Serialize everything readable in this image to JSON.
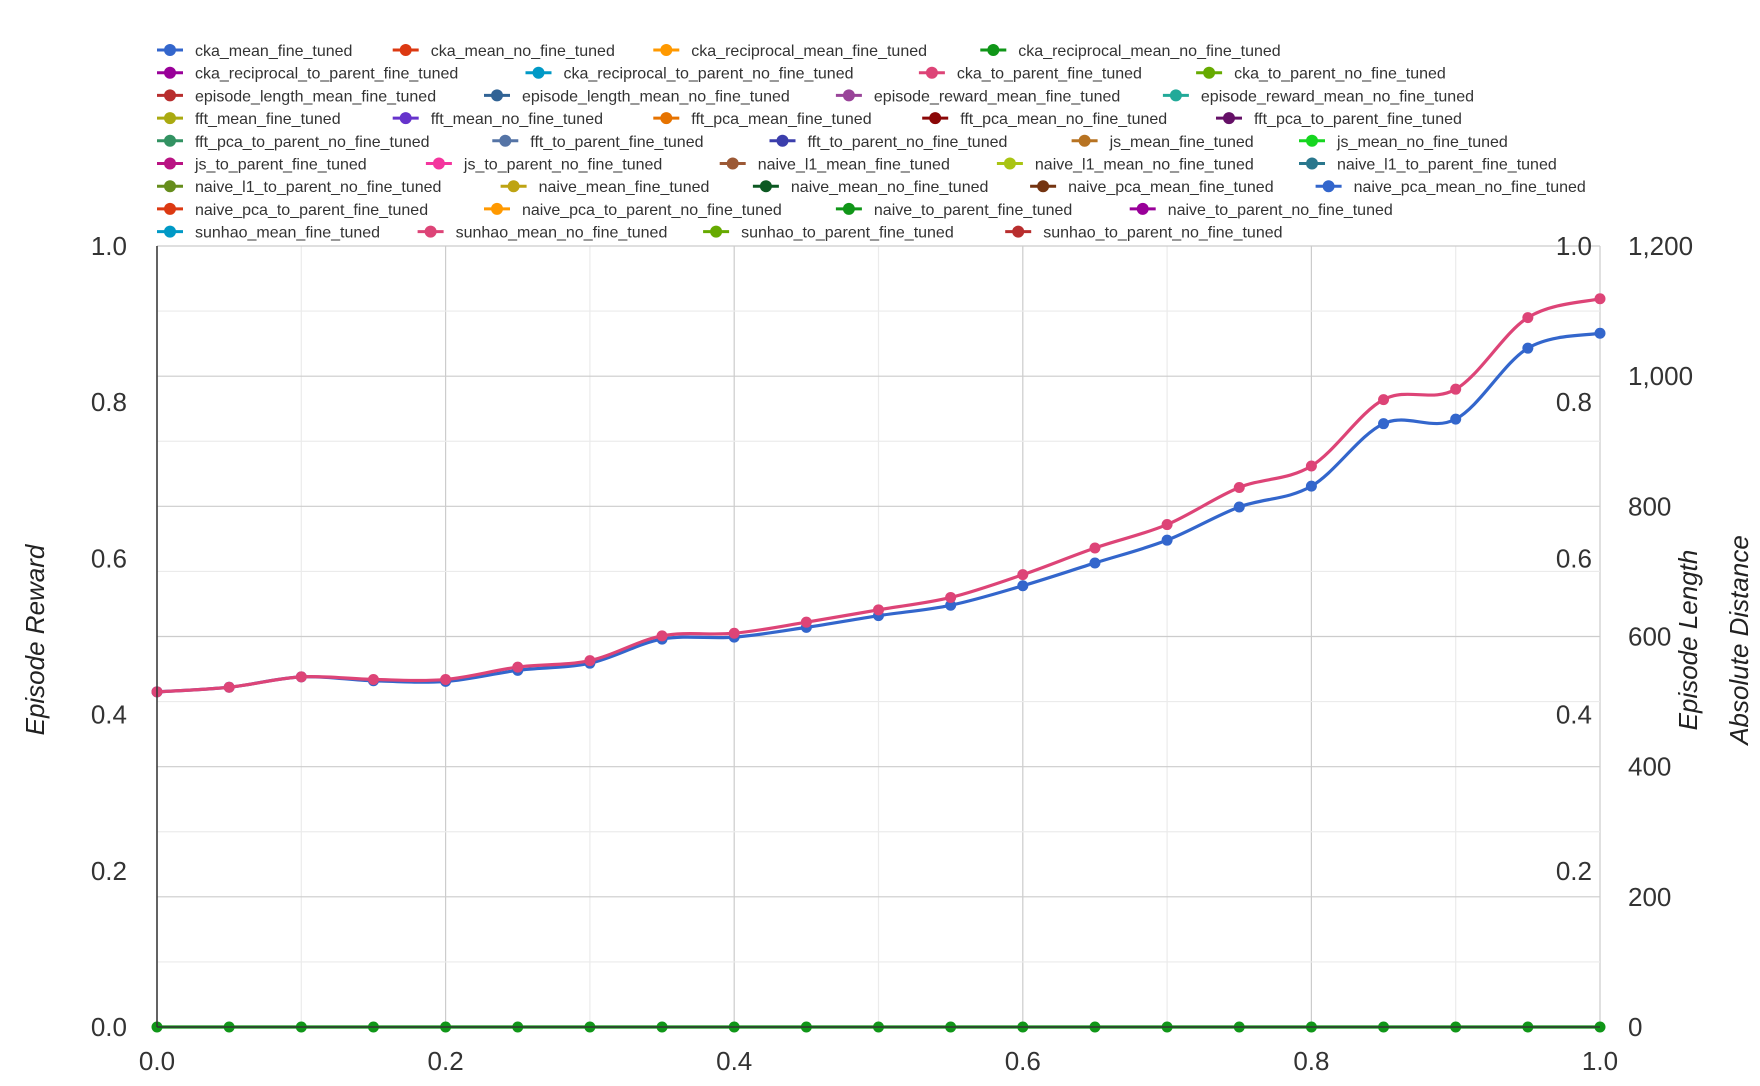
{
  "chart_data": {
    "type": "line",
    "title": "",
    "xlabel": "",
    "ylabel_left": "Episode Reward",
    "ylabel_right_1": "Episode Length",
    "ylabel_right_2": "Absolute Distance",
    "xlim": [
      0,
      1
    ],
    "ylim_left": [
      0,
      1
    ],
    "ylim_right_1": [
      0,
      1200
    ],
    "ylim_right_2": [
      0,
      1
    ],
    "grid": true,
    "legend_position": "top",
    "x_ticks": [
      "0.0",
      "0.2",
      "0.4",
      "0.6",
      "0.8",
      "1.0"
    ],
    "y_left_ticks": [
      "0.0",
      "0.2",
      "0.4",
      "0.6",
      "0.8",
      "1.0"
    ],
    "y_right_1_ticks": [
      "0",
      "200",
      "400",
      "600",
      "800",
      "1,000",
      "1,200"
    ],
    "y_right_2_ticks": [
      "0.2",
      "0.4",
      "0.6",
      "0.8",
      "1.0"
    ],
    "x": [
      0.0,
      0.05,
      0.1,
      0.15,
      0.2,
      0.25,
      0.3,
      0.35,
      0.4,
      0.45,
      0.5,
      0.55,
      0.6,
      0.65,
      0.7,
      0.75,
      0.8,
      0.85,
      0.9,
      0.95,
      1.0
    ],
    "legend": [
      {
        "name": "cka_mean_fine_tuned",
        "color": "#3366cc"
      },
      {
        "name": "cka_mean_no_fine_tuned",
        "color": "#dc3912"
      },
      {
        "name": "cka_reciprocal_mean_fine_tuned",
        "color": "#ff9900"
      },
      {
        "name": "cka_reciprocal_mean_no_fine_tuned",
        "color": "#109618"
      },
      {
        "name": "cka_reciprocal_to_parent_fine_tuned",
        "color": "#990099"
      },
      {
        "name": "cka_reciprocal_to_parent_no_fine_tuned",
        "color": "#0099c6"
      },
      {
        "name": "cka_to_parent_fine_tuned",
        "color": "#dd4477"
      },
      {
        "name": "cka_to_parent_no_fine_tuned",
        "color": "#66aa00"
      },
      {
        "name": "episode_length_mean_fine_tuned",
        "color": "#b82e2e"
      },
      {
        "name": "episode_length_mean_no_fine_tuned",
        "color": "#316395"
      },
      {
        "name": "episode_reward_mean_fine_tuned",
        "color": "#994499"
      },
      {
        "name": "episode_reward_mean_no_fine_tuned",
        "color": "#22aa99"
      },
      {
        "name": "fft_mean_fine_tuned",
        "color": "#aaaa11"
      },
      {
        "name": "fft_mean_no_fine_tuned",
        "color": "#6633cc"
      },
      {
        "name": "fft_pca_mean_fine_tuned",
        "color": "#e67300"
      },
      {
        "name": "fft_pca_mean_no_fine_tuned",
        "color": "#8b0707"
      },
      {
        "name": "fft_pca_to_parent_fine_tuned",
        "color": "#651067"
      },
      {
        "name": "fft_pca_to_parent_no_fine_tuned",
        "color": "#329262"
      },
      {
        "name": "fft_to_parent_fine_tuned",
        "color": "#5574a6"
      },
      {
        "name": "fft_to_parent_no_fine_tuned",
        "color": "#3b3eac"
      },
      {
        "name": "js_mean_fine_tuned",
        "color": "#b77322"
      },
      {
        "name": "js_mean_no_fine_tuned",
        "color": "#16d620"
      },
      {
        "name": "js_to_parent_fine_tuned",
        "color": "#b91383"
      },
      {
        "name": "js_to_parent_no_fine_tuned",
        "color": "#f4359e"
      },
      {
        "name": "naive_l1_mean_fine_tuned",
        "color": "#9c5935"
      },
      {
        "name": "naive_l1_mean_no_fine_tuned",
        "color": "#a9c413"
      },
      {
        "name": "naive_l1_to_parent_fine_tuned",
        "color": "#2a778d"
      },
      {
        "name": "naive_l1_to_parent_no_fine_tuned",
        "color": "#668d1c"
      },
      {
        "name": "naive_mean_fine_tuned",
        "color": "#bea413"
      },
      {
        "name": "naive_mean_no_fine_tuned",
        "color": "#0c5922"
      },
      {
        "name": "naive_pca_mean_fine_tuned",
        "color": "#743411"
      },
      {
        "name": "naive_pca_mean_no_fine_tuned",
        "color": "#3366cc"
      },
      {
        "name": "naive_pca_to_parent_fine_tuned",
        "color": "#dc3912"
      },
      {
        "name": "naive_pca_to_parent_no_fine_tuned",
        "color": "#ff9900"
      },
      {
        "name": "naive_to_parent_fine_tuned",
        "color": "#109618"
      },
      {
        "name": "naive_to_parent_no_fine_tuned",
        "color": "#990099"
      },
      {
        "name": "sunhao_mean_fine_tuned",
        "color": "#0099c6"
      },
      {
        "name": "sunhao_mean_no_fine_tuned",
        "color": "#dd4477"
      },
      {
        "name": "sunhao_to_parent_fine_tuned",
        "color": "#66aa00"
      },
      {
        "name": "sunhao_to_parent_no_fine_tuned",
        "color": "#b82e2e"
      }
    ],
    "series": [
      {
        "name": "naive_to_parent_fine_tuned",
        "color": "#109618",
        "axis": "left",
        "values": [
          0,
          0,
          0,
          0,
          0,
          0,
          0,
          0,
          0,
          0,
          0,
          0,
          0,
          0,
          0,
          0,
          0,
          0,
          0,
          0,
          0
        ]
      },
      {
        "name": "naive_pca_mean_no_fine_tuned",
        "color": "#3366cc",
        "axis": "right_1",
        "values": [
          515,
          522,
          538,
          532,
          531,
          548,
          559,
          596,
          599,
          614,
          632,
          648,
          678,
          713,
          748,
          799,
          831,
          927,
          934,
          1043,
          1066
        ]
      },
      {
        "name": "sunhao_mean_no_fine_tuned",
        "color": "#dd4477",
        "axis": "right_1",
        "values": [
          515,
          522,
          538,
          534,
          534,
          553,
          563,
          601,
          605,
          622,
          641,
          660,
          695,
          736,
          772,
          829,
          862,
          964,
          980,
          1090,
          1119
        ]
      }
    ]
  }
}
